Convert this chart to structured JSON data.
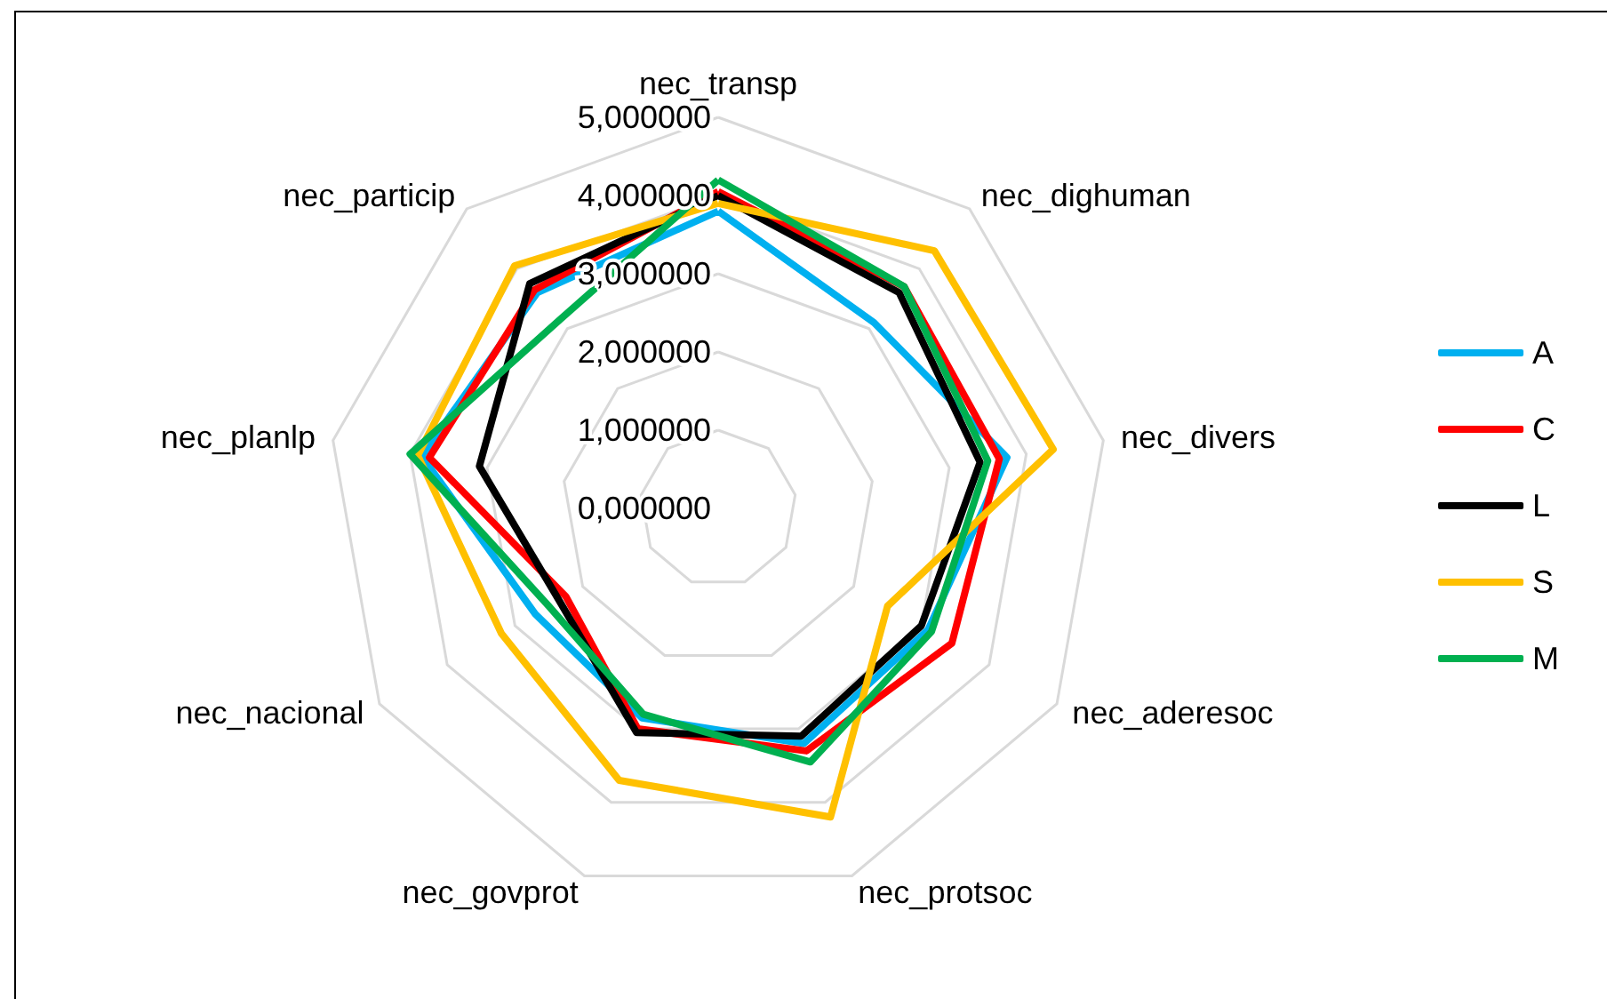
{
  "chart_data": {
    "type": "radar",
    "categories": [
      "nec_transp",
      "nec_dighuman",
      "nec_divers",
      "nec_aderesoc",
      "nec_protsoc",
      "nec_govprot",
      "nec_nacional",
      "nec_planlp",
      "nec_particip"
    ],
    "series": [
      {
        "name": "A",
        "color": "#00b0f0",
        "values": [
          3.8,
          3.1,
          3.75,
          3.1,
          3.2,
          2.85,
          2.7,
          3.85,
          3.6
        ]
      },
      {
        "name": "C",
        "color": "#ff0000",
        "values": [
          4.05,
          3.7,
          3.65,
          3.45,
          3.3,
          3.0,
          2.25,
          3.75,
          3.65
        ]
      },
      {
        "name": "L",
        "color": "#000000",
        "values": [
          4.0,
          3.6,
          3.4,
          3.0,
          3.1,
          3.05,
          2.35,
          3.1,
          3.75
        ]
      },
      {
        "name": "S",
        "color": "#ffc000",
        "values": [
          3.9,
          4.3,
          4.35,
          2.5,
          4.2,
          3.7,
          3.2,
          3.9,
          4.05
        ]
      },
      {
        "name": "M",
        "color": "#00b050",
        "values": [
          4.2,
          3.7,
          3.5,
          3.15,
          3.45,
          2.8,
          2.5,
          4.0,
          3.15
        ]
      }
    ],
    "ylim": [
      0,
      5
    ],
    "yticks": [
      {
        "value": 0,
        "label": "0,000000"
      },
      {
        "value": 1,
        "label": "1,000000"
      },
      {
        "value": 2,
        "label": "2,000000"
      },
      {
        "value": 3,
        "label": "3,000000"
      },
      {
        "value": 4,
        "label": "4,000000"
      },
      {
        "value": 5,
        "label": "5,000000"
      }
    ],
    "grid": true,
    "legend": "right",
    "marker": "none",
    "line_style": "solid"
  }
}
